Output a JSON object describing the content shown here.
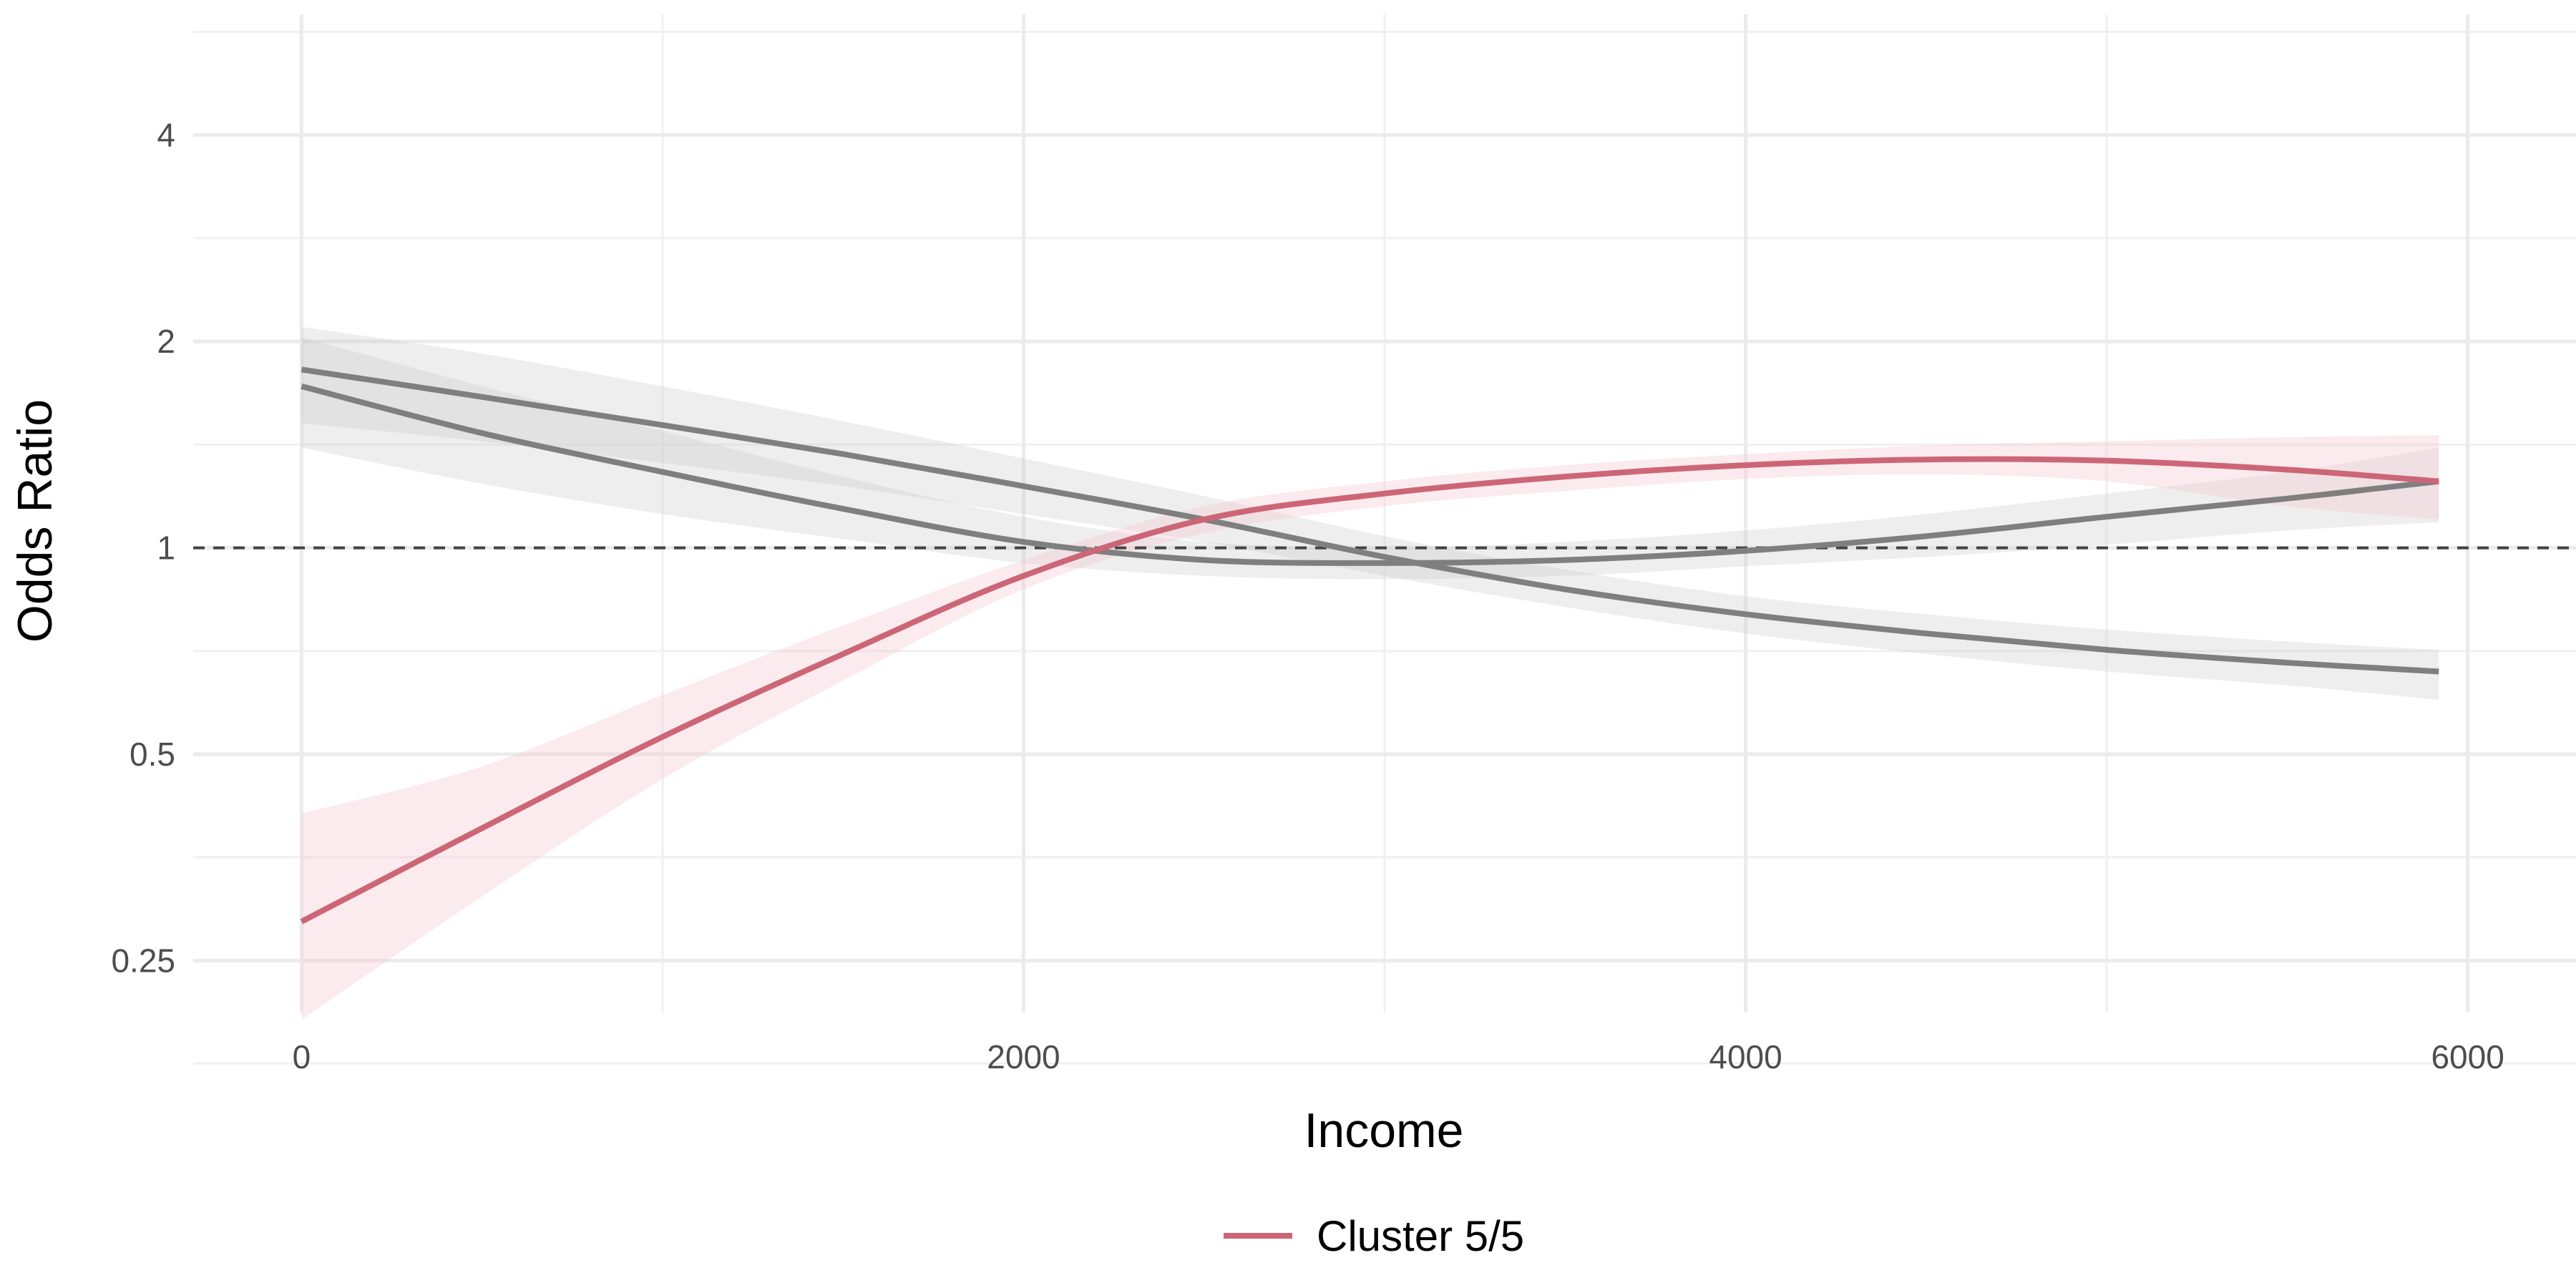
{
  "chart_data": {
    "type": "line",
    "xlabel": "Income",
    "ylabel": "Odds Ratio",
    "y_scale": "log",
    "xlim": [
      -300,
      6300
    ],
    "ylim": [
      0.21,
      6.0
    ],
    "x_ticks": [
      {
        "value": 0,
        "label": "0"
      },
      {
        "value": 2000,
        "label": "2000"
      },
      {
        "value": 4000,
        "label": "4000"
      },
      {
        "value": 6000,
        "label": "6000"
      }
    ],
    "x_minor_ticks": [
      1000,
      3000,
      5000
    ],
    "y_ticks": [
      {
        "value": 0.25,
        "label": "0.25"
      },
      {
        "value": 0.5,
        "label": "0.5"
      },
      {
        "value": 1,
        "label": "1"
      },
      {
        "value": 2,
        "label": "2"
      },
      {
        "value": 4,
        "label": "4"
      }
    ],
    "y_minor_ticks": [
      0.177,
      0.354,
      0.707,
      1.414,
      2.828,
      5.657
    ],
    "reference_line": {
      "y": 1,
      "style": "dashed",
      "color": "#444444"
    },
    "grid": true,
    "legend_position": "bottom",
    "series": [
      {
        "name": "",
        "color": "#7f7f7f",
        "band_color": "#cccccc",
        "x": [
          0,
          500,
          1000,
          1500,
          2000,
          2500,
          3000,
          3500,
          4000,
          4500,
          5000,
          5500,
          5920
        ],
        "y": [
          1.82,
          1.66,
          1.51,
          1.37,
          1.23,
          1.1,
          0.97,
          0.87,
          0.8,
          0.75,
          0.71,
          0.68,
          0.66
        ],
        "lower": [
          1.52,
          1.43,
          1.33,
          1.23,
          1.12,
          1.02,
          0.91,
          0.82,
          0.75,
          0.7,
          0.66,
          0.63,
          0.6
        ],
        "upper": [
          2.1,
          1.92,
          1.72,
          1.53,
          1.35,
          1.19,
          1.04,
          0.93,
          0.85,
          0.8,
          0.76,
          0.73,
          0.71
        ]
      },
      {
        "name": "",
        "color": "#7f7f7f",
        "band_color": "#cccccc",
        "x": [
          0,
          500,
          1000,
          1500,
          2000,
          2500,
          3000,
          3500,
          4000,
          4500,
          5000,
          5500,
          5920
        ],
        "y": [
          1.72,
          1.47,
          1.29,
          1.14,
          1.02,
          0.96,
          0.95,
          0.96,
          0.99,
          1.04,
          1.11,
          1.18,
          1.25
        ],
        "lower": [
          1.4,
          1.24,
          1.12,
          1.03,
          0.95,
          0.91,
          0.9,
          0.91,
          0.94,
          0.97,
          1.01,
          1.06,
          1.09
        ],
        "upper": [
          2.03,
          1.72,
          1.48,
          1.27,
          1.11,
          1.02,
          1.0,
          1.02,
          1.06,
          1.12,
          1.2,
          1.29,
          1.4
        ]
      },
      {
        "name": "Cluster 5/5",
        "color": "#cc6677",
        "band_color": "#f4c6cf",
        "x": [
          0,
          500,
          1000,
          1500,
          2000,
          2500,
          3000,
          3500,
          4000,
          4500,
          5000,
          5500,
          5920
        ],
        "y": [
          0.285,
          0.39,
          0.53,
          0.7,
          0.91,
          1.1,
          1.2,
          1.27,
          1.32,
          1.345,
          1.34,
          1.3,
          1.25
        ],
        "lower": [
          0.205,
          0.31,
          0.46,
          0.64,
          0.87,
          1.05,
          1.15,
          1.21,
          1.26,
          1.28,
          1.25,
          1.15,
          1.1
        ],
        "upper": [
          0.41,
          0.48,
          0.61,
          0.77,
          0.96,
          1.15,
          1.25,
          1.32,
          1.37,
          1.41,
          1.43,
          1.45,
          1.46
        ]
      }
    ]
  }
}
